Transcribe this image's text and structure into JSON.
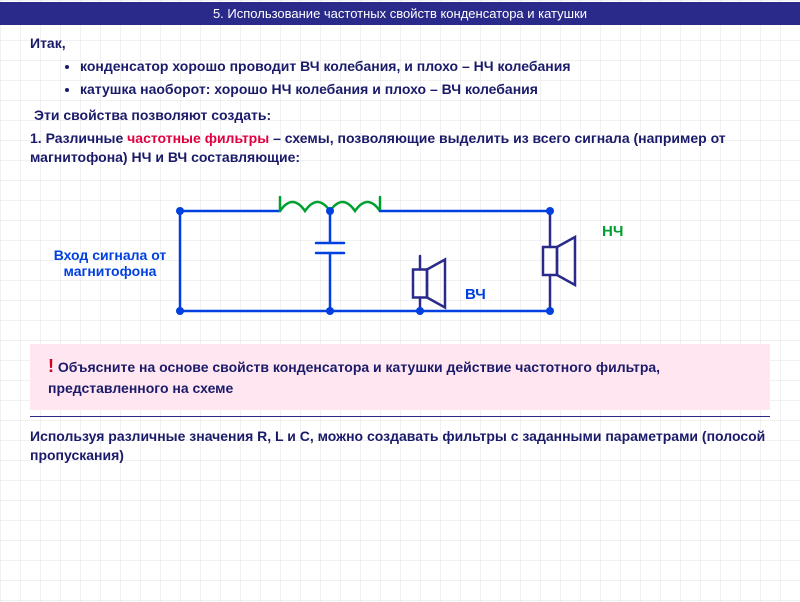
{
  "header": {
    "title": "5. Использование частотных свойств конденсатора и катушки"
  },
  "intro": "Итак,",
  "bullets": [
    "конденсатор хорошо проводит ВЧ колебания, и плохо – НЧ колебания",
    "катушка наоборот: хорошо НЧ колебания и плохо – ВЧ колебания"
  ],
  "subtitle": "Эти свойства позволяют создать:",
  "numbered": {
    "prefix": "1.  Различные ",
    "highlight": "частотные фильтры",
    "suffix": " – схемы, позволяющие выделить из всего сигнала (например от магнитофона) НЧ и ВЧ составляющие:"
  },
  "diagram": {
    "input_label": "Вход сигнала от магнитофона",
    "hf_label": "ВЧ",
    "lf_label": "НЧ",
    "colors": {
      "wire": "#0040e0",
      "inductor": "#00a030",
      "capacitor": "#0040e0",
      "speaker": "#2a2a8a",
      "node": "#0040e0"
    },
    "stroke_width": 2.5,
    "node_radius": 4
  },
  "question": {
    "bang": "!",
    "text": " Объясните на основе свойств конденсатора и катушки действие частотного фильтра, представленного на схеме"
  },
  "footnote": "Используя различные значения R, L и C, можно создавать фильтры с заданными параметрами (полосой пропускания)"
}
